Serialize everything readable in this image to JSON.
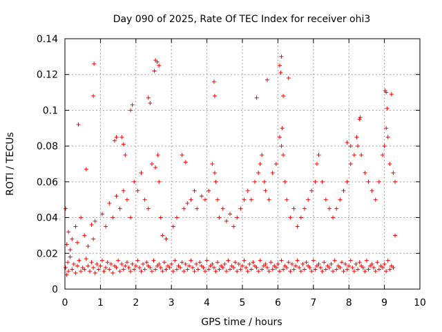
{
  "chart_data": {
    "type": "scatter",
    "title": "Day 090 of 2025, Rate Of TEC Index for receiver ohi3",
    "xlabel": "GPS time / hours",
    "ylabel": "ROTI / TECUs",
    "xlim": [
      0,
      10
    ],
    "ylim": [
      0,
      0.14
    ],
    "xticks": [
      "0",
      "1",
      "2",
      "3",
      "4",
      "5",
      "6",
      "7",
      "8",
      "9",
      "10"
    ],
    "yticks": [
      "0",
      "0.02",
      "0.04",
      "0.06",
      "0.08",
      "0.1",
      "0.12",
      "0.14"
    ],
    "grid": true,
    "marker": "+",
    "color": "#ff0000",
    "series": [
      {
        "name": "ROTI",
        "x": [
          0.02,
          0.05,
          0.08,
          0.1,
          0.15,
          0.2,
          0.25,
          0.3,
          0.35,
          0.4,
          0.45,
          0.5,
          0.55,
          0.6,
          0.65,
          0.7,
          0.75,
          0.8,
          0.85,
          0.9,
          0.95,
          1.0,
          1.05,
          1.1,
          1.15,
          1.2,
          1.25,
          1.3,
          1.35,
          1.4,
          1.45,
          1.5,
          1.55,
          1.6,
          1.65,
          1.7,
          1.75,
          1.8,
          1.85,
          1.9,
          1.95,
          2.0,
          2.05,
          2.1,
          2.15,
          2.2,
          2.25,
          2.3,
          2.35,
          2.4,
          2.45,
          2.5,
          2.55,
          2.6,
          2.65,
          2.7,
          2.75,
          2.8,
          2.85,
          2.9,
          2.95,
          3.0,
          3.05,
          3.1,
          3.15,
          3.2,
          3.25,
          3.3,
          3.35,
          3.4,
          3.45,
          3.5,
          3.55,
          3.6,
          3.65,
          3.7,
          3.75,
          3.8,
          3.85,
          3.9,
          3.95,
          4.0,
          4.05,
          4.1,
          4.15,
          4.2,
          4.25,
          4.3,
          4.35,
          4.4,
          4.45,
          4.5,
          4.55,
          4.6,
          4.65,
          4.7,
          4.75,
          4.8,
          4.85,
          4.9,
          4.95,
          5.0,
          5.05,
          5.1,
          5.15,
          5.2,
          5.25,
          5.3,
          5.35,
          5.4,
          5.45,
          5.5,
          5.55,
          5.6,
          5.65,
          5.7,
          5.75,
          5.8,
          5.85,
          5.9,
          5.95,
          6.0,
          6.05,
          6.1,
          6.15,
          6.2,
          6.25,
          6.3,
          6.35,
          6.4,
          6.45,
          6.5,
          6.55,
          6.6,
          6.65,
          6.7,
          6.75,
          6.8,
          6.85,
          6.9,
          6.95,
          7.0,
          7.05,
          7.1,
          7.15,
          7.2,
          7.25,
          7.3,
          7.35,
          7.4,
          7.45,
          7.5,
          7.55,
          7.6,
          7.65,
          7.7,
          7.75,
          7.8,
          7.85,
          7.9,
          7.95,
          8.0,
          8.05,
          8.1,
          8.15,
          8.2,
          8.25,
          8.3,
          8.35,
          8.4,
          8.45,
          8.5,
          8.55,
          8.6,
          8.65,
          8.7,
          8.75,
          8.8,
          8.85,
          8.9,
          8.95,
          9.0,
          9.05,
          9.1,
          9.15,
          9.2,
          9.25,
          9.3,
          0.02,
          0.05,
          0.1,
          0.15,
          0.2,
          0.3,
          0.35,
          0.45,
          0.55,
          0.65,
          0.75,
          0.8,
          0.85,
          1.05,
          1.15,
          1.25,
          1.35,
          1.45,
          1.55,
          1.65,
          1.75,
          1.85,
          1.95,
          2.05,
          2.15,
          2.25,
          2.35,
          2.45,
          2.55,
          2.62,
          2.65,
          2.7,
          2.75,
          2.85,
          3.05,
          3.15,
          3.35,
          3.45,
          3.55,
          3.65,
          3.72,
          3.85,
          3.95,
          4.05,
          4.15,
          4.22,
          4.25,
          4.3,
          4.35,
          4.45,
          4.55,
          4.65,
          4.75,
          4.85,
          4.95,
          5.05,
          5.15,
          5.25,
          5.35,
          5.45,
          5.5,
          5.55,
          5.62,
          5.65,
          5.75,
          5.85,
          5.95,
          6.05,
          6.1,
          6.12,
          6.15,
          6.2,
          6.25,
          6.35,
          6.45,
          6.55,
          6.65,
          6.75,
          6.85,
          6.95,
          7.05,
          7.1,
          7.15,
          7.25,
          7.35,
          7.45,
          7.55,
          7.65,
          7.75,
          7.85,
          7.95,
          8.05,
          8.15,
          8.22,
          8.25,
          8.35,
          8.45,
          8.55,
          8.65,
          8.75,
          8.85,
          8.95,
          9.0,
          9.05,
          9.1,
          9.15,
          9.25,
          9.3,
          0.82,
          0.8,
          0.38,
          0.6,
          1.9,
          1.85,
          2.55,
          2.6,
          2.65,
          2.52,
          4.2,
          4.22,
          5.4,
          5.7,
          6.05,
          6.08,
          6.1,
          6.15,
          6.3,
          9.02,
          9.05,
          9.08,
          9.2,
          8.3,
          8.32,
          7.95,
          8.05,
          2.35,
          2.4,
          1.4,
          1.45,
          1.6,
          1.65,
          1.7,
          3.3,
          3.4
        ],
        "y": [
          0.012,
          0.008,
          0.015,
          0.01,
          0.018,
          0.011,
          0.014,
          0.009,
          0.013,
          0.016,
          0.01,
          0.012,
          0.011,
          0.017,
          0.013,
          0.01,
          0.015,
          0.012,
          0.009,
          0.014,
          0.011,
          0.013,
          0.016,
          0.01,
          0.012,
          0.015,
          0.011,
          0.014,
          0.009,
          0.013,
          0.012,
          0.016,
          0.01,
          0.014,
          0.011,
          0.013,
          0.015,
          0.012,
          0.01,
          0.014,
          0.011,
          0.013,
          0.016,
          0.012,
          0.01,
          0.014,
          0.011,
          0.015,
          0.013,
          0.012,
          0.01,
          0.016,
          0.011,
          0.013,
          0.014,
          0.012,
          0.01,
          0.015,
          0.011,
          0.013,
          0.012,
          0.014,
          0.01,
          0.016,
          0.011,
          0.013,
          0.012,
          0.015,
          0.01,
          0.014,
          0.011,
          0.013,
          0.016,
          0.012,
          0.01,
          0.014,
          0.011,
          0.015,
          0.013,
          0.012,
          0.01,
          0.016,
          0.011,
          0.013,
          0.014,
          0.012,
          0.01,
          0.015,
          0.011,
          0.013,
          0.012,
          0.014,
          0.01,
          0.016,
          0.011,
          0.013,
          0.012,
          0.015,
          0.01,
          0.014,
          0.011,
          0.013,
          0.016,
          0.012,
          0.01,
          0.014,
          0.011,
          0.015,
          0.013,
          0.012,
          0.01,
          0.016,
          0.011,
          0.013,
          0.014,
          0.012,
          0.01,
          0.015,
          0.011,
          0.013,
          0.012,
          0.014,
          0.01,
          0.016,
          0.011,
          0.013,
          0.012,
          0.015,
          0.01,
          0.014,
          0.011,
          0.013,
          0.016,
          0.012,
          0.01,
          0.014,
          0.011,
          0.015,
          0.013,
          0.012,
          0.01,
          0.016,
          0.011,
          0.013,
          0.014,
          0.012,
          0.01,
          0.015,
          0.011,
          0.013,
          0.012,
          0.014,
          0.01,
          0.016,
          0.011,
          0.013,
          0.012,
          0.015,
          0.01,
          0.014,
          0.011,
          0.013,
          0.016,
          0.012,
          0.01,
          0.014,
          0.011,
          0.015,
          0.013,
          0.012,
          0.01,
          0.016,
          0.011,
          0.013,
          0.014,
          0.012,
          0.01,
          0.015,
          0.011,
          0.013,
          0.012,
          0.014,
          0.01,
          0.016,
          0.011,
          0.013,
          0.012,
          0.03,
          0.045,
          0.025,
          0.032,
          0.022,
          0.028,
          0.035,
          0.026,
          0.04,
          0.03,
          0.024,
          0.036,
          0.028,
          0.038,
          0.042,
          0.035,
          0.048,
          0.04,
          0.052,
          0.045,
          0.055,
          0.05,
          0.04,
          0.06,
          0.055,
          0.065,
          0.05,
          0.045,
          0.07,
          0.068,
          0.075,
          0.06,
          0.04,
          0.03,
          0.028,
          0.035,
          0.04,
          0.045,
          0.048,
          0.05,
          0.055,
          0.045,
          0.052,
          0.05,
          0.055,
          0.07,
          0.065,
          0.06,
          0.05,
          0.04,
          0.045,
          0.038,
          0.042,
          0.035,
          0.04,
          0.045,
          0.05,
          0.055,
          0.05,
          0.06,
          0.065,
          0.07,
          0.075,
          0.06,
          0.055,
          0.05,
          0.065,
          0.07,
          0.085,
          0.08,
          0.09,
          0.075,
          0.06,
          0.05,
          0.04,
          0.045,
          0.035,
          0.04,
          0.045,
          0.05,
          0.055,
          0.06,
          0.07,
          0.075,
          0.06,
          0.05,
          0.045,
          0.04,
          0.045,
          0.05,
          0.055,
          0.06,
          0.07,
          0.075,
          0.085,
          0.08,
          0.075,
          0.065,
          0.06,
          0.055,
          0.05,
          0.06,
          0.075,
          0.08,
          0.09,
          0.085,
          0.07,
          0.065,
          0.06,
          0.126,
          0.108,
          0.092,
          0.067,
          0.103,
          0.1,
          0.128,
          0.127,
          0.125,
          0.122,
          0.116,
          0.108,
          0.107,
          0.117,
          0.125,
          0.121,
          0.13,
          0.108,
          0.118,
          0.111,
          0.11,
          0.101,
          0.109,
          0.095,
          0.096,
          0.082,
          0.08,
          0.107,
          0.104,
          0.083,
          0.085,
          0.085,
          0.081,
          0.075,
          0.075,
          0.071
        ]
      }
    ]
  }
}
